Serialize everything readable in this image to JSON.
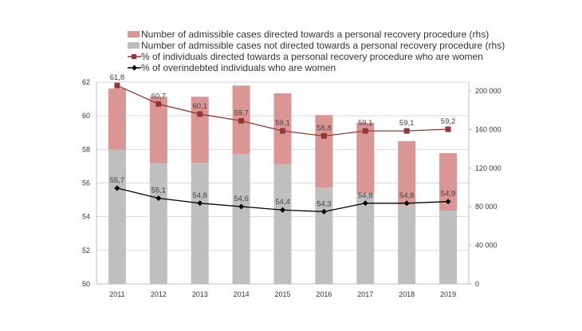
{
  "chart_data": {
    "type": "bar+line",
    "categories": [
      "2011",
      "2012",
      "2013",
      "2014",
      "2015",
      "2016",
      "2017",
      "2018",
      "2019"
    ],
    "series": [
      {
        "name": "Number of admissible cases directed towards a personal recovery procedure (rhs)",
        "type": "stacked-bar",
        "axis": "right",
        "color": "#d99694",
        "values": [
          63500,
          69000,
          68500,
          71000,
          73500,
          75000,
          73500,
          66000,
          59500
        ]
      },
      {
        "name": "Number of admissible cases not directed towards a personal recovery procedure (rhs)",
        "type": "stacked-bar",
        "axis": "right",
        "color": "#bfbfbf",
        "values": [
          139000,
          125000,
          125500,
          134500,
          124000,
          100000,
          93500,
          82000,
          76000
        ]
      },
      {
        "name": "% of individuals directed towards a personal recovery procedure who are women",
        "type": "line",
        "axis": "left",
        "color": "#953735",
        "marker": "square",
        "values": [
          61.8,
          60.7,
          60.1,
          59.7,
          59.1,
          58.8,
          59.1,
          59.1,
          59.2
        ],
        "labels": [
          "61,8",
          "60,7",
          "60,1",
          "59,7",
          "59,1",
          "58,8",
          "59,1",
          "59,1",
          "59,2"
        ]
      },
      {
        "name": "% of overindebted individuals who are women",
        "type": "line",
        "axis": "left",
        "color": "#000000",
        "marker": "diamond",
        "values": [
          55.7,
          55.1,
          54.8,
          54.6,
          54.4,
          54.3,
          54.8,
          54.8,
          54.9
        ],
        "labels": [
          "55,7",
          "55,1",
          "54,8",
          "54,6",
          "54,4",
          "54,3",
          "54,8",
          "54,8",
          "54,9"
        ]
      }
    ],
    "left_axis": {
      "range": [
        50,
        62
      ],
      "ticks": [
        "50",
        "52",
        "54",
        "56",
        "58",
        "60",
        "62"
      ]
    },
    "right_axis": {
      "range": [
        0,
        210000
      ],
      "ticks": [
        "0",
        "40 000",
        "80 000",
        "120 000",
        "160 000",
        "200 000"
      ]
    },
    "grid": true,
    "legend": "top"
  }
}
